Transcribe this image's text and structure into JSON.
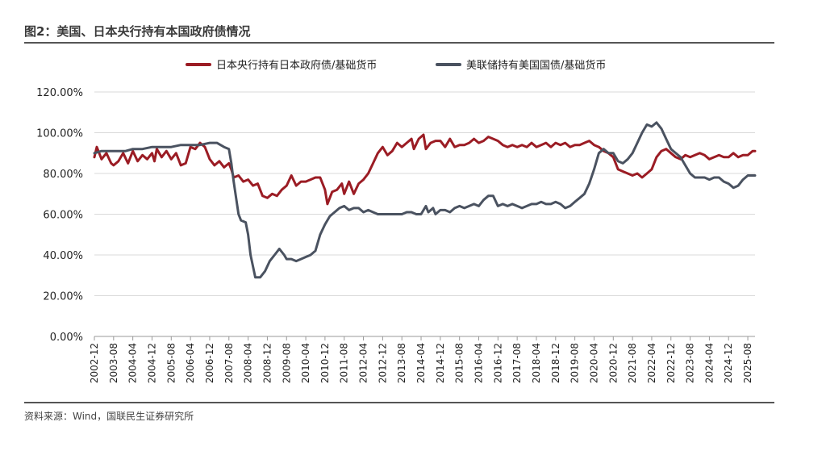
{
  "header": {
    "title": "图2：美国、日本央行持有本国政府债情况"
  },
  "footer": {
    "source": "资料来源：Wind，国联民生证券研究所"
  },
  "chart_data": {
    "type": "line",
    "title": "",
    "xlabel": "",
    "ylabel": "",
    "ylim": [
      0,
      120
    ],
    "y_ticks": [
      "0.00%",
      "20.00%",
      "40.00%",
      "60.00%",
      "80.00%",
      "100.00%",
      "120.00%"
    ],
    "y_tick_values": [
      0,
      20,
      40,
      60,
      80,
      100,
      120
    ],
    "x_range": [
      "2002-12",
      "2025-11"
    ],
    "x_ticks": [
      "2002-12",
      "2003-08",
      "2004-04",
      "2004-12",
      "2005-08",
      "2006-04",
      "2006-12",
      "2007-08",
      "2008-04",
      "2008-12",
      "2009-08",
      "2010-04",
      "2010-12",
      "2011-08",
      "2012-04",
      "2012-12",
      "2013-08",
      "2014-04",
      "2014-12",
      "2015-08",
      "2016-04",
      "2016-12",
      "2017-08",
      "2018-04",
      "2018-12",
      "2019-08",
      "2020-04",
      "2020-12",
      "2021-08",
      "2022-04",
      "2022-12",
      "2023-08",
      "2024-04",
      "2024-12",
      "2025-08"
    ],
    "grid": "horizontal",
    "legend_position": "top-center",
    "series": [
      {
        "name": "日本央行持有日本政府债/基础货币",
        "color": "#9b1c24",
        "points": [
          [
            "2002-12",
            88
          ],
          [
            "2003-01",
            93
          ],
          [
            "2003-03",
            87
          ],
          [
            "2003-05",
            90
          ],
          [
            "2003-07",
            85
          ],
          [
            "2003-08",
            84
          ],
          [
            "2003-10",
            86
          ],
          [
            "2003-12",
            90
          ],
          [
            "2004-02",
            85
          ],
          [
            "2004-04",
            91
          ],
          [
            "2004-06",
            86
          ],
          [
            "2004-08",
            89
          ],
          [
            "2004-10",
            87
          ],
          [
            "2004-12",
            90
          ],
          [
            "2005-01",
            86
          ],
          [
            "2005-02",
            92
          ],
          [
            "2005-04",
            88
          ],
          [
            "2005-06",
            91
          ],
          [
            "2005-08",
            87
          ],
          [
            "2005-10",
            90
          ],
          [
            "2005-12",
            84
          ],
          [
            "2006-02",
            85
          ],
          [
            "2006-04",
            93
          ],
          [
            "2006-06",
            92
          ],
          [
            "2006-08",
            95
          ],
          [
            "2006-10",
            93
          ],
          [
            "2006-12",
            87
          ],
          [
            "2007-02",
            84
          ],
          [
            "2007-04",
            86
          ],
          [
            "2007-06",
            83
          ],
          [
            "2007-08",
            85
          ],
          [
            "2007-09",
            82
          ],
          [
            "2007-10",
            78
          ],
          [
            "2007-12",
            79
          ],
          [
            "2008-02",
            76
          ],
          [
            "2008-04",
            77
          ],
          [
            "2008-06",
            74
          ],
          [
            "2008-08",
            75
          ],
          [
            "2008-10",
            69
          ],
          [
            "2008-12",
            68
          ],
          [
            "2009-02",
            70
          ],
          [
            "2009-04",
            69
          ],
          [
            "2009-06",
            72
          ],
          [
            "2009-08",
            74
          ],
          [
            "2009-10",
            79
          ],
          [
            "2009-12",
            74
          ],
          [
            "2010-02",
            76
          ],
          [
            "2010-04",
            76
          ],
          [
            "2010-06",
            77
          ],
          [
            "2010-08",
            78
          ],
          [
            "2010-10",
            78
          ],
          [
            "2010-12",
            72
          ],
          [
            "2011-01",
            65
          ],
          [
            "2011-03",
            71
          ],
          [
            "2011-05",
            72
          ],
          [
            "2011-07",
            75
          ],
          [
            "2011-08",
            70
          ],
          [
            "2011-10",
            76
          ],
          [
            "2011-12",
            70
          ],
          [
            "2012-02",
            75
          ],
          [
            "2012-04",
            77
          ],
          [
            "2012-06",
            80
          ],
          [
            "2012-08",
            85
          ],
          [
            "2012-10",
            90
          ],
          [
            "2012-12",
            93
          ],
          [
            "2013-02",
            89
          ],
          [
            "2013-04",
            91
          ],
          [
            "2013-06",
            95
          ],
          [
            "2013-08",
            93
          ],
          [
            "2013-10",
            95
          ],
          [
            "2013-12",
            97
          ],
          [
            "2014-01",
            92
          ],
          [
            "2014-03",
            97
          ],
          [
            "2014-05",
            99
          ],
          [
            "2014-06",
            92
          ],
          [
            "2014-08",
            95
          ],
          [
            "2014-10",
            96
          ],
          [
            "2014-12",
            96
          ],
          [
            "2015-02",
            93
          ],
          [
            "2015-04",
            97
          ],
          [
            "2015-06",
            93
          ],
          [
            "2015-08",
            94
          ],
          [
            "2015-10",
            94
          ],
          [
            "2015-12",
            95
          ],
          [
            "2016-02",
            97
          ],
          [
            "2016-04",
            95
          ],
          [
            "2016-06",
            96
          ],
          [
            "2016-08",
            98
          ],
          [
            "2016-10",
            97
          ],
          [
            "2016-12",
            96
          ],
          [
            "2017-02",
            94
          ],
          [
            "2017-04",
            93
          ],
          [
            "2017-06",
            94
          ],
          [
            "2017-08",
            93
          ],
          [
            "2017-10",
            94
          ],
          [
            "2017-12",
            93
          ],
          [
            "2018-02",
            95
          ],
          [
            "2018-04",
            93
          ],
          [
            "2018-06",
            94
          ],
          [
            "2018-08",
            95
          ],
          [
            "2018-10",
            93
          ],
          [
            "2018-12",
            95
          ],
          [
            "2019-02",
            94
          ],
          [
            "2019-04",
            95
          ],
          [
            "2019-06",
            93
          ],
          [
            "2019-08",
            94
          ],
          [
            "2019-10",
            94
          ],
          [
            "2019-12",
            95
          ],
          [
            "2020-02",
            96
          ],
          [
            "2020-04",
            94
          ],
          [
            "2020-06",
            93
          ],
          [
            "2020-08",
            91
          ],
          [
            "2020-10",
            90
          ],
          [
            "2020-12",
            88
          ],
          [
            "2021-02",
            82
          ],
          [
            "2021-04",
            81
          ],
          [
            "2021-06",
            80
          ],
          [
            "2021-08",
            79
          ],
          [
            "2021-10",
            80
          ],
          [
            "2021-12",
            78
          ],
          [
            "2022-02",
            80
          ],
          [
            "2022-04",
            82
          ],
          [
            "2022-06",
            88
          ],
          [
            "2022-08",
            91
          ],
          [
            "2022-10",
            92
          ],
          [
            "2022-12",
            90
          ],
          [
            "2023-02",
            88
          ],
          [
            "2023-04",
            87
          ],
          [
            "2023-06",
            89
          ],
          [
            "2023-08",
            88
          ],
          [
            "2023-10",
            89
          ],
          [
            "2023-12",
            90
          ],
          [
            "2024-02",
            89
          ],
          [
            "2024-04",
            87
          ],
          [
            "2024-06",
            88
          ],
          [
            "2024-08",
            89
          ],
          [
            "2024-10",
            88
          ],
          [
            "2024-12",
            88
          ],
          [
            "2025-02",
            90
          ],
          [
            "2025-04",
            88
          ],
          [
            "2025-06",
            89
          ],
          [
            "2025-08",
            89
          ],
          [
            "2025-10",
            91
          ],
          [
            "2025-11",
            91
          ]
        ]
      },
      {
        "name": "美联储持有美国国债/基础货币",
        "color": "#4a5260",
        "points": [
          [
            "2002-12",
            90
          ],
          [
            "2003-03",
            91
          ],
          [
            "2003-08",
            91
          ],
          [
            "2004-01",
            91
          ],
          [
            "2004-04",
            92
          ],
          [
            "2004-08",
            92
          ],
          [
            "2004-12",
            93
          ],
          [
            "2005-04",
            93
          ],
          [
            "2005-08",
            93
          ],
          [
            "2005-12",
            94
          ],
          [
            "2006-04",
            94
          ],
          [
            "2006-08",
            94
          ],
          [
            "2006-12",
            95
          ],
          [
            "2007-03",
            95
          ],
          [
            "2007-06",
            93
          ],
          [
            "2007-08",
            92
          ],
          [
            "2007-09",
            85
          ],
          [
            "2007-10",
            76
          ],
          [
            "2007-11",
            68
          ],
          [
            "2007-12",
            60
          ],
          [
            "2008-01",
            57
          ],
          [
            "2008-03",
            56
          ],
          [
            "2008-04",
            50
          ],
          [
            "2008-05",
            40
          ],
          [
            "2008-07",
            29
          ],
          [
            "2008-09",
            29
          ],
          [
            "2008-11",
            32
          ],
          [
            "2009-01",
            37
          ],
          [
            "2009-03",
            40
          ],
          [
            "2009-05",
            43
          ],
          [
            "2009-07",
            40
          ],
          [
            "2009-08",
            38
          ],
          [
            "2009-10",
            38
          ],
          [
            "2009-12",
            37
          ],
          [
            "2010-02",
            38
          ],
          [
            "2010-04",
            39
          ],
          [
            "2010-06",
            40
          ],
          [
            "2010-08",
            42
          ],
          [
            "2010-10",
            50
          ],
          [
            "2010-12",
            55
          ],
          [
            "2011-02",
            59
          ],
          [
            "2011-04",
            61
          ],
          [
            "2011-06",
            63
          ],
          [
            "2011-08",
            64
          ],
          [
            "2011-10",
            62
          ],
          [
            "2011-12",
            63
          ],
          [
            "2012-02",
            63
          ],
          [
            "2012-04",
            61
          ],
          [
            "2012-06",
            62
          ],
          [
            "2012-08",
            61
          ],
          [
            "2012-10",
            60
          ],
          [
            "2012-12",
            60
          ],
          [
            "2013-02",
            60
          ],
          [
            "2013-04",
            60
          ],
          [
            "2013-08",
            60
          ],
          [
            "2013-10",
            61
          ],
          [
            "2013-12",
            61
          ],
          [
            "2014-02",
            60
          ],
          [
            "2014-04",
            60
          ],
          [
            "2014-06",
            64
          ],
          [
            "2014-07",
            61
          ],
          [
            "2014-09",
            63
          ],
          [
            "2014-10",
            60
          ],
          [
            "2014-12",
            62
          ],
          [
            "2015-02",
            62
          ],
          [
            "2015-04",
            61
          ],
          [
            "2015-06",
            63
          ],
          [
            "2015-08",
            64
          ],
          [
            "2015-10",
            63
          ],
          [
            "2015-12",
            64
          ],
          [
            "2016-02",
            65
          ],
          [
            "2016-04",
            64
          ],
          [
            "2016-06",
            67
          ],
          [
            "2016-08",
            69
          ],
          [
            "2016-10",
            69
          ],
          [
            "2016-12",
            64
          ],
          [
            "2017-02",
            65
          ],
          [
            "2017-04",
            64
          ],
          [
            "2017-06",
            65
          ],
          [
            "2017-08",
            64
          ],
          [
            "2017-10",
            63
          ],
          [
            "2017-12",
            64
          ],
          [
            "2018-02",
            65
          ],
          [
            "2018-04",
            65
          ],
          [
            "2018-06",
            66
          ],
          [
            "2018-08",
            65
          ],
          [
            "2018-10",
            65
          ],
          [
            "2018-12",
            66
          ],
          [
            "2019-02",
            65
          ],
          [
            "2019-04",
            63
          ],
          [
            "2019-06",
            64
          ],
          [
            "2019-08",
            66
          ],
          [
            "2019-10",
            68
          ],
          [
            "2019-12",
            70
          ],
          [
            "2020-02",
            75
          ],
          [
            "2020-04",
            82
          ],
          [
            "2020-06",
            90
          ],
          [
            "2020-08",
            92
          ],
          [
            "2020-10",
            90
          ],
          [
            "2020-12",
            90
          ],
          [
            "2021-02",
            86
          ],
          [
            "2021-04",
            85
          ],
          [
            "2021-06",
            87
          ],
          [
            "2021-08",
            90
          ],
          [
            "2021-10",
            95
          ],
          [
            "2021-12",
            100
          ],
          [
            "2022-02",
            104
          ],
          [
            "2022-04",
            103
          ],
          [
            "2022-06",
            105
          ],
          [
            "2022-08",
            102
          ],
          [
            "2022-10",
            97
          ],
          [
            "2022-12",
            92
          ],
          [
            "2023-02",
            90
          ],
          [
            "2023-04",
            88
          ],
          [
            "2023-06",
            84
          ],
          [
            "2023-08",
            80
          ],
          [
            "2023-10",
            78
          ],
          [
            "2023-12",
            78
          ],
          [
            "2024-02",
            78
          ],
          [
            "2024-04",
            77
          ],
          [
            "2024-06",
            78
          ],
          [
            "2024-08",
            78
          ],
          [
            "2024-10",
            76
          ],
          [
            "2024-12",
            75
          ],
          [
            "2025-02",
            73
          ],
          [
            "2025-04",
            74
          ],
          [
            "2025-06",
            77
          ],
          [
            "2025-08",
            79
          ],
          [
            "2025-10",
            79
          ],
          [
            "2025-11",
            79
          ]
        ]
      }
    ]
  }
}
